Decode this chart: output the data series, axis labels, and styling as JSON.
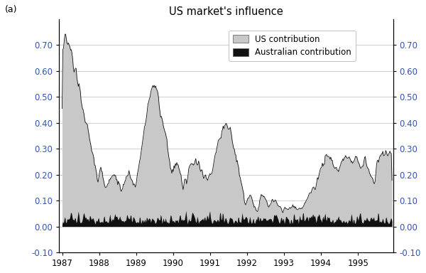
{
  "title": "US market's influence",
  "panel_label": "(a)",
  "ylim": [
    -0.1,
    0.8
  ],
  "yticks": [
    -0.1,
    0.0,
    0.1,
    0.2,
    0.3,
    0.4,
    0.5,
    0.6,
    0.7
  ],
  "xlim_start": 1986.92,
  "xlim_end": 1995.95,
  "xtick_labels": [
    "1987",
    "1988",
    "1989",
    "1990",
    "1991",
    "1992",
    "1993",
    "1994",
    "1995"
  ],
  "us_color": "#C8C8C8",
  "aus_color": "#111111",
  "line_color": "#111111",
  "background_color": "#FFFFFF",
  "legend_us": "US contribution",
  "legend_aus": "Australian contribution",
  "grid_color": "#BBBBBB",
  "axis_label_color": "#3355AA",
  "figsize": [
    6.0,
    3.84
  ],
  "dpi": 100
}
